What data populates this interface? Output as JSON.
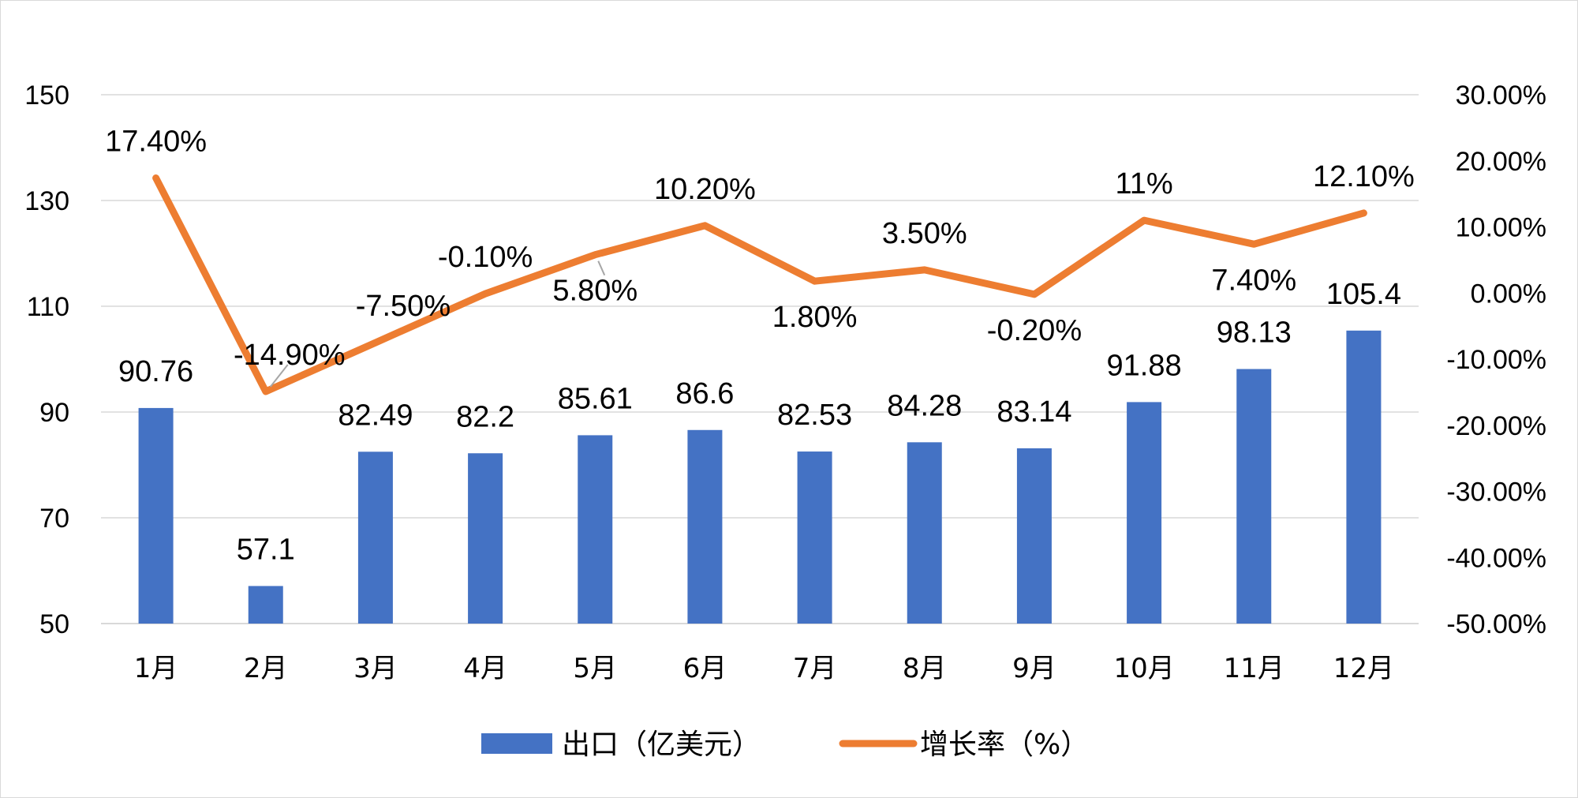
{
  "chart_data": {
    "type": "bar+line",
    "categories": [
      "1月",
      "2月",
      "3月",
      "4月",
      "5月",
      "6月",
      "7月",
      "8月",
      "9月",
      "10月",
      "11月",
      "12月"
    ],
    "series": [
      {
        "name": "出口（亿美元）",
        "type": "bar",
        "axis": "left",
        "color": "#4472C4",
        "values": [
          90.76,
          57.1,
          82.49,
          82.2,
          85.61,
          86.6,
          82.53,
          84.28,
          83.14,
          91.88,
          98.13,
          105.4
        ],
        "labels": [
          "90.76",
          "57.1",
          "82.49",
          "82.2",
          "85.61",
          "86.6",
          "82.53",
          "84.28",
          "83.14",
          "91.88",
          "98.13",
          "105.4"
        ]
      },
      {
        "name": "增长率（%）",
        "type": "line",
        "axis": "right",
        "color": "#ED7D31",
        "values": [
          17.4,
          -14.9,
          -7.5,
          -0.1,
          5.8,
          10.2,
          1.8,
          3.5,
          -0.2,
          11,
          7.4,
          12.1
        ],
        "labels": [
          "17.40%",
          "-14.90%",
          "-7.50%",
          "-0.10%",
          "5.80%",
          "10.20%",
          "1.80%",
          "3.50%",
          "-0.20%",
          "11%",
          "7.40%",
          "12.10%"
        ]
      }
    ],
    "y_left": {
      "range": [
        50,
        150
      ],
      "ticks": [
        "50",
        "70",
        "90",
        "110",
        "130",
        "150"
      ]
    },
    "y_right": {
      "range": [
        -50,
        30
      ],
      "ticks": [
        "-50.00%",
        "-40.00%",
        "-30.00%",
        "-20.00%",
        "-10.00%",
        "0.00%",
        "10.00%",
        "20.00%",
        "30.00%"
      ]
    },
    "grid": true,
    "legend_position": "bottom"
  }
}
